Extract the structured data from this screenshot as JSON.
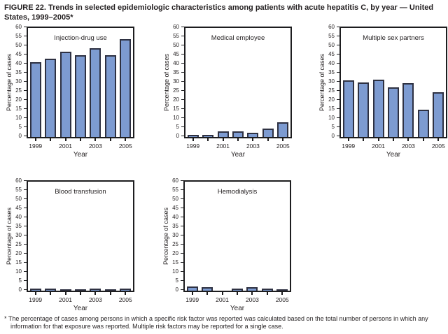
{
  "figure": {
    "title": "FIGURE 22. Trends in selected epidemiologic characteristics among patients with acute hepatitis C, by year — United States, 1999–2005*",
    "footnote": "* The percentage of cases among persons in which a specific risk factor was reported was calculated based on the total number of persons in which any information for that exposure was reported. Multiple risk factors may be reported for a single case."
  },
  "colors": {
    "bar_fill": "#7d9bd1",
    "bar_border": "#2e3142",
    "axis": "#1d1d1f"
  },
  "chart_data": [
    {
      "type": "bar",
      "title": "Injection-drug use",
      "categories": [
        1999,
        2000,
        2001,
        2002,
        2003,
        2004,
        2005
      ],
      "values": [
        41,
        43,
        47,
        45,
        49,
        45,
        54
      ],
      "xtick_labels": [
        "1999",
        "2001",
        "2003",
        "2005"
      ],
      "xlabel": "Year",
      "ylabel": "Percentage of cases",
      "ylim": [
        0,
        60
      ],
      "ytick_step": 5,
      "grid": false
    },
    {
      "type": "bar",
      "title": "Medical employee",
      "categories": [
        1999,
        2000,
        2001,
        2002,
        2003,
        2004,
        2005
      ],
      "values": [
        1,
        1,
        3,
        3,
        2.5,
        4.5,
        8
      ],
      "xtick_labels": [
        "1999",
        "2001",
        "2003",
        "2005"
      ],
      "xlabel": "Year",
      "ylabel": "Percentage of cases",
      "ylim": [
        0,
        60
      ],
      "ytick_step": 5,
      "grid": false
    },
    {
      "type": "bar",
      "title": "Multiple sex partners",
      "categories": [
        1999,
        2000,
        2001,
        2002,
        2003,
        2004,
        2005
      ],
      "values": [
        31,
        30,
        31.5,
        27.5,
        29.5,
        15,
        24.5
      ],
      "xtick_labels": [
        "1999",
        "2001",
        "2003",
        "2005"
      ],
      "xlabel": "Year",
      "ylabel": "Percentage of cases",
      "ylim": [
        0,
        60
      ],
      "ytick_step": 5,
      "grid": false
    },
    {
      "type": "bar",
      "title": "Blood transfusion",
      "categories": [
        1999,
        2000,
        2001,
        2002,
        2003,
        2004,
        2005
      ],
      "values": [
        1,
        1,
        0.5,
        0.5,
        1,
        0.5,
        1
      ],
      "xtick_labels": [
        "1999",
        "2001",
        "2003",
        "2005"
      ],
      "xlabel": "Year",
      "ylabel": "Percentage of cases",
      "ylim": [
        0,
        60
      ],
      "ytick_step": 5,
      "grid": false
    },
    {
      "type": "bar",
      "title": "Hemodialysis",
      "categories": [
        1999,
        2000,
        2001,
        2002,
        2003,
        2004,
        2005
      ],
      "values": [
        2.5,
        2,
        0,
        1,
        2,
        1,
        0.5
      ],
      "xtick_labels": [
        "1999",
        "2001",
        "2003",
        "2005"
      ],
      "xlabel": "Year",
      "ylabel": "Percentage of cases",
      "ylim": [
        0,
        60
      ],
      "ytick_step": 5,
      "grid": false
    }
  ]
}
